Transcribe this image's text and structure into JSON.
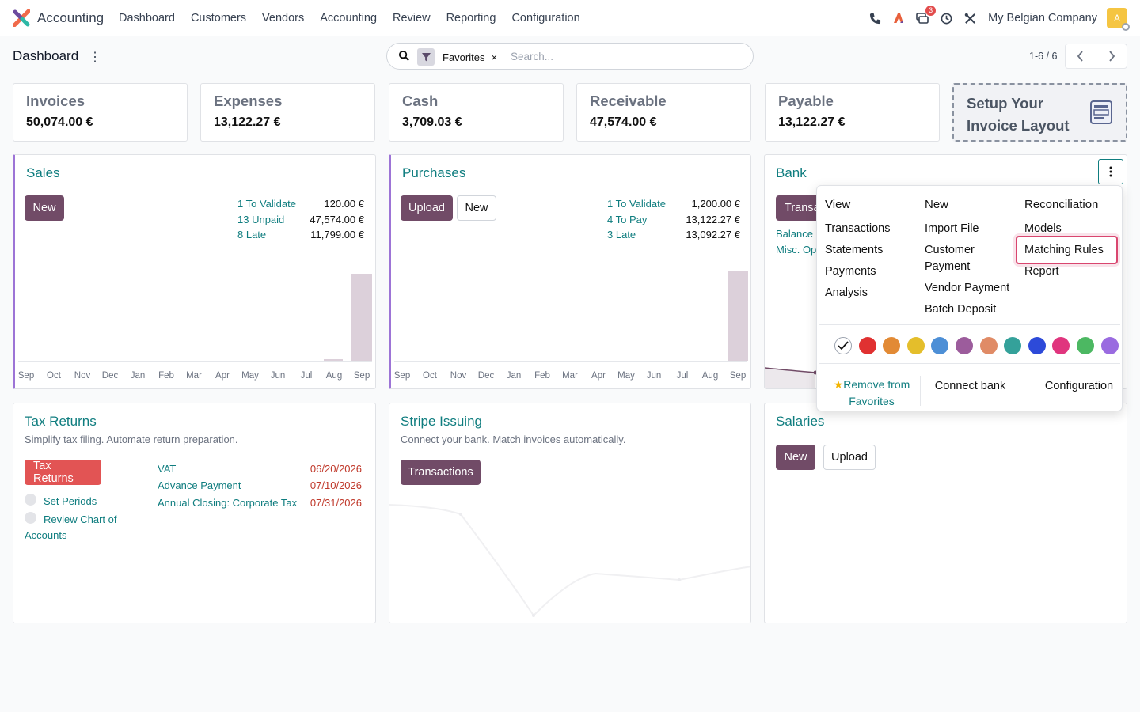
{
  "nav": {
    "app_name": "Accounting",
    "menu": [
      "Dashboard",
      "Customers",
      "Vendors",
      "Accounting",
      "Review",
      "Reporting",
      "Configuration"
    ],
    "messages_badge": "3",
    "company": "My Belgian Company",
    "avatar_letter": "A"
  },
  "control_panel": {
    "title": "Dashboard",
    "facet_label": "Favorites",
    "facet_remove": "×",
    "search_placeholder": "Search...",
    "pager": "1-6 / 6"
  },
  "kpis": [
    {
      "label": "Invoices",
      "value": "50,074.00 €"
    },
    {
      "label": "Expenses",
      "value": "13,122.27 €"
    },
    {
      "label": "Cash",
      "value": "3,709.03 €"
    },
    {
      "label": "Receivable",
      "value": "47,574.00 €"
    },
    {
      "label": "Payable",
      "value": "13,122.27 €"
    }
  ],
  "setup": {
    "line1": "Setup Your",
    "line2": "Invoice Layout"
  },
  "sales": {
    "title": "Sales",
    "new_button": "New",
    "stats": [
      {
        "label": "1 To Validate",
        "value": "120.00 €"
      },
      {
        "label": "13 Unpaid",
        "value": "47,574.00 €"
      },
      {
        "label": "8 Late",
        "value": "11,799.00 €"
      }
    ]
  },
  "purchases": {
    "title": "Purchases",
    "upload_button": "Upload",
    "new_button": "New",
    "stats": [
      {
        "label": "1 To Validate",
        "value": "1,200.00 €"
      },
      {
        "label": "4 To Pay",
        "value": "13,122.27 €"
      },
      {
        "label": "3 Late",
        "value": "13,092.27 €"
      }
    ]
  },
  "months": [
    "Sep",
    "Oct",
    "Nov",
    "Dec",
    "Jan",
    "Feb",
    "Mar",
    "Apr",
    "May",
    "Jun",
    "Jul",
    "Aug",
    "Sep"
  ],
  "bank": {
    "title": "Bank",
    "button_partial": "Transa",
    "link1": "Balance",
    "link2": "Misc. Op"
  },
  "tax_returns": {
    "title": "Tax Returns",
    "subtitle": "Simplify tax filing. Automate return preparation.",
    "button": "Tax Returns",
    "todo1": "Set Periods",
    "todo2a": "Review Chart of",
    "todo2b": "Accounts",
    "items": [
      {
        "label": "VAT",
        "date": "06/20/2026"
      },
      {
        "label": "Advance Payment",
        "date": "07/10/2026"
      },
      {
        "label": "Annual Closing: Corporate Tax",
        "date": "07/31/2026"
      }
    ]
  },
  "stripe": {
    "title": "Stripe Issuing",
    "subtitle": "Connect your bank. Match invoices automatically.",
    "button": "Transactions"
  },
  "salaries": {
    "title": "Salaries",
    "new_button": "New",
    "upload_button": "Upload"
  },
  "dropdown": {
    "view_header": "View",
    "view_items": [
      "Transactions",
      "Statements",
      "Payments",
      "Analysis"
    ],
    "new_header": "New",
    "new_items": [
      "Import File",
      "Customer",
      "Payment",
      "Vendor Payment",
      "Batch Deposit"
    ],
    "rec_header": "Reconciliation",
    "rec_items": [
      "Models",
      "Matching Rules",
      "Report"
    ],
    "colors": [
      "#e03131",
      "#e28a35",
      "#e4be2b",
      "#4d8fd6",
      "#9c5c9c",
      "#e08b66",
      "#34a19a",
      "#2d4ad9",
      "#e0357e",
      "#4cb862",
      "#9a6be0"
    ],
    "remove_fav_1": "Remove from",
    "remove_fav_2": "Favorites",
    "connect_bank": "Connect bank",
    "configuration": "Configuration"
  }
}
